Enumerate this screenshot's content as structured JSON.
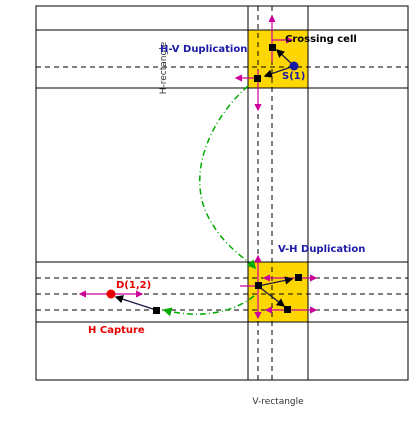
{
  "labels": {
    "h_rectangle": "H-rectangle",
    "v_rectangle": "V-rectangle",
    "hv_duplication": "H-V Duplication",
    "crossing_cell": "Crossing cell",
    "source": "S(1)",
    "vh_duplication": "V-H Duplication",
    "dest": "D(1,2)",
    "h_capture": "H Capture"
  },
  "colors": {
    "frame": "#000000",
    "crossing_fill": "#ffd700",
    "magenta_arrow": "#cc0099",
    "green_path": "#00aa00",
    "blue_label": "#1a1aa6",
    "red_label": "#e60000",
    "source_dot": "#1a1aa6",
    "dest_dot": "#e60000"
  }
}
